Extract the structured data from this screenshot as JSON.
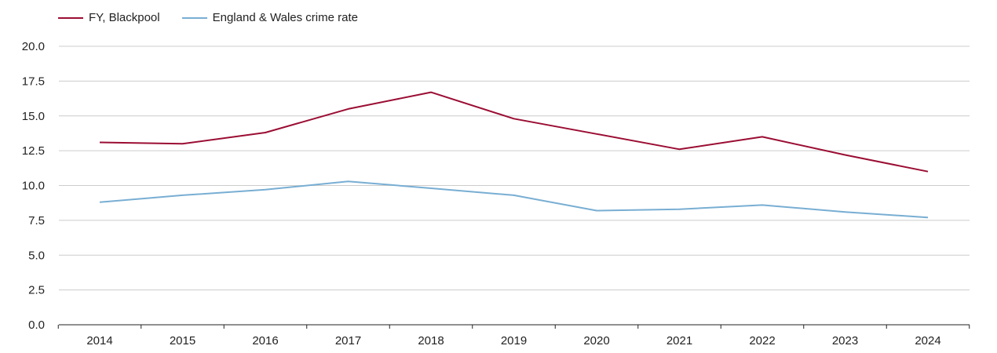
{
  "chart_data": {
    "type": "line",
    "title": "",
    "xlabel": "",
    "ylabel": "",
    "x": [
      2014,
      2015,
      2016,
      2017,
      2018,
      2019,
      2020,
      2021,
      2022,
      2023,
      2024
    ],
    "x_tick_labels": [
      "2014",
      "2015",
      "2016",
      "2017",
      "2018",
      "2019",
      "2020",
      "2021",
      "2022",
      "2023",
      "2024"
    ],
    "y_ticks": [
      0.0,
      2.5,
      5.0,
      7.5,
      10.0,
      12.5,
      15.0,
      17.5,
      20.0
    ],
    "y_tick_labels": [
      "0.0",
      "2.5",
      "5.0",
      "7.5",
      "10.0",
      "12.5",
      "15.0",
      "17.5",
      "20.0"
    ],
    "ylim": [
      0,
      20
    ],
    "grid": true,
    "legend_position": "top-left",
    "series": [
      {
        "name": "FY, Blackpool",
        "color": "#9b0d33",
        "values": [
          13.1,
          13.0,
          13.8,
          15.5,
          16.7,
          14.8,
          13.7,
          12.6,
          13.5,
          12.2,
          11.0
        ]
      },
      {
        "name": "England & Wales crime rate",
        "color": "#78aed3",
        "values": [
          8.8,
          9.3,
          9.7,
          10.3,
          9.8,
          9.3,
          8.2,
          8.3,
          8.6,
          8.1,
          7.7
        ]
      }
    ]
  }
}
